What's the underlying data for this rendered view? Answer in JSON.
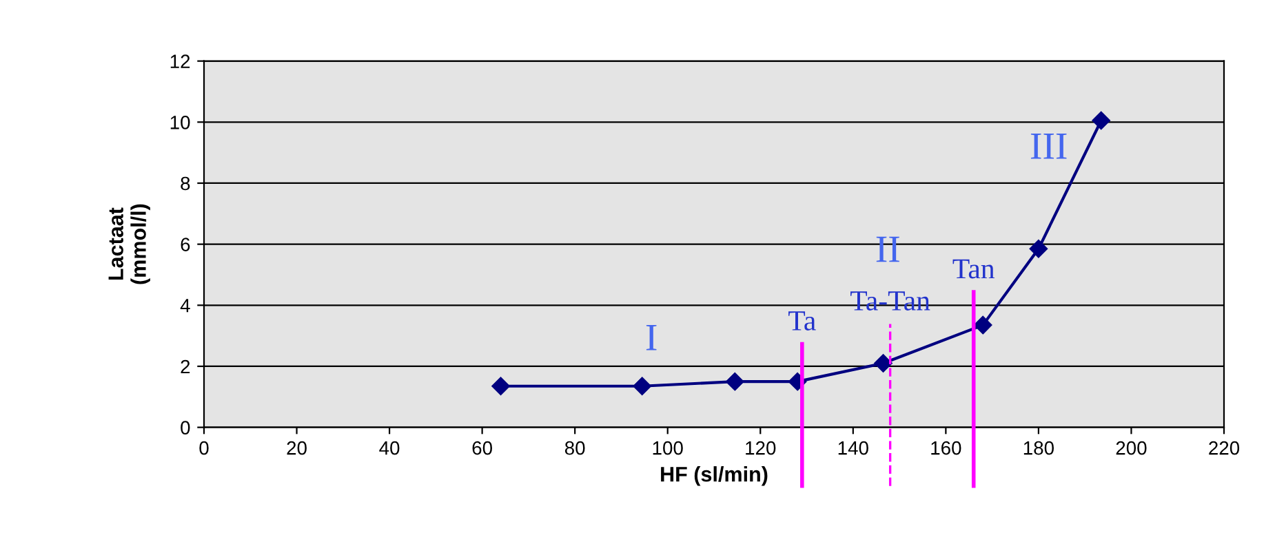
{
  "chart_data": {
    "type": "line",
    "xlabel": "HF (sl/min)",
    "ylabel": "Lactaat\n(mmol/l)",
    "xlim": [
      0,
      220
    ],
    "xticks": [
      0,
      20,
      40,
      60,
      80,
      100,
      120,
      140,
      160,
      180,
      200,
      220
    ],
    "ylim": [
      0,
      12
    ],
    "yticks": [
      0,
      2,
      4,
      6,
      8,
      10,
      12
    ],
    "grid": "y",
    "marker": "diamond",
    "line_style": "solid",
    "series": [
      {
        "color": "#000080",
        "x": [
          64,
          94.5,
          114.5,
          128,
          146.5,
          168,
          180,
          193.5
        ],
        "values": [
          1.35,
          1.35,
          1.5,
          1.5,
          2.1,
          3.35,
          5.85,
          10.05
        ]
      }
    ],
    "ref_lines": [
      {
        "axis": "x",
        "value": 129,
        "label": "Ta",
        "color": "#ff00ff",
        "line_style": "solid"
      },
      {
        "axis": "x",
        "value": 148,
        "label": "Ta-Tan",
        "color": "#ff00ff",
        "line_style": "dashed"
      },
      {
        "axis": "x",
        "value": 166,
        "label": "Tan",
        "color": "#ff00ff",
        "line_style": "solid"
      }
    ],
    "annotations": [
      "I",
      "II",
      "III"
    ]
  }
}
